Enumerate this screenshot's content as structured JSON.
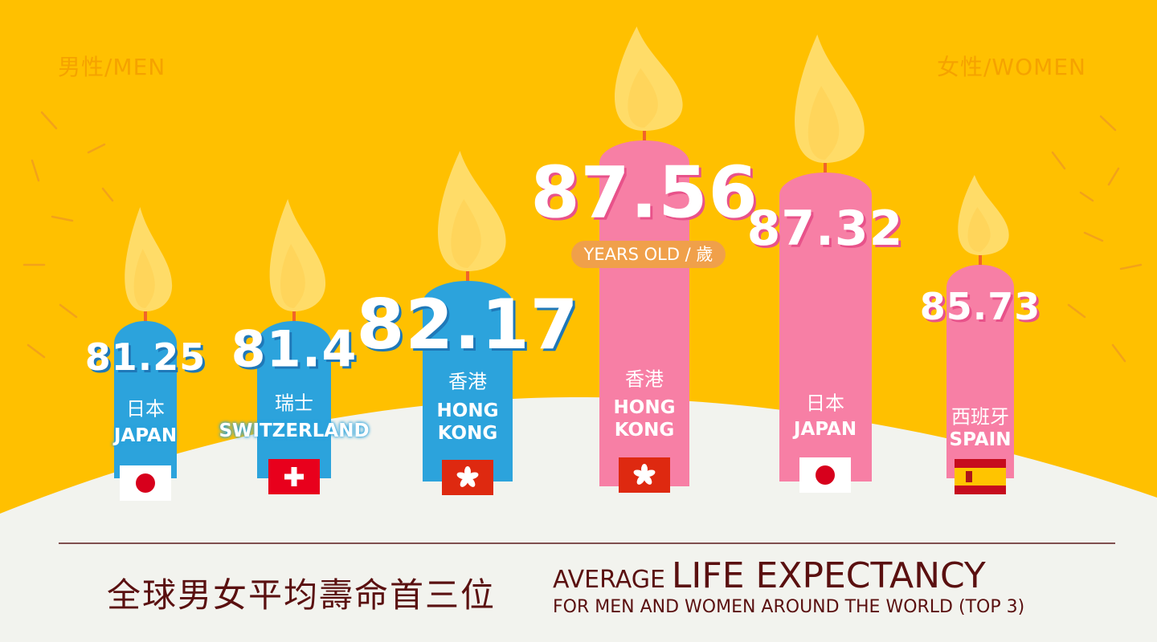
{
  "groups": [
    {
      "label": "男性/MEN",
      "items": [
        {
          "value": 81.25,
          "name_zh": "日本",
          "name_en": "JAPAN"
        },
        {
          "value": 81.4,
          "name_zh": "瑞士",
          "name_en": "SWITZERLAND"
        },
        {
          "value": 82.17,
          "name_zh": "香港",
          "name_en": "HONG KONG"
        }
      ]
    },
    {
      "label": "女性/WOMEN",
      "items": [
        {
          "value": 87.56,
          "name_zh": "香港",
          "name_en": "HONG KONG"
        },
        {
          "value": 87.32,
          "name_zh": "日本",
          "name_en": "JAPAN"
        },
        {
          "value": 85.73,
          "name_zh": "西班牙",
          "name_en": "SPAIN"
        }
      ]
    }
  ],
  "unit": "YEARS OLD / 歲",
  "footer": {
    "title_zh": "全球男女平均壽命首三位",
    "title_en_prefix": "AVERAGE",
    "title_en_main": "LIFE EXPECTANCY",
    "subtitle": "FOR MEN AND WOMEN AROUND THE WORLD (TOP 3)"
  }
}
